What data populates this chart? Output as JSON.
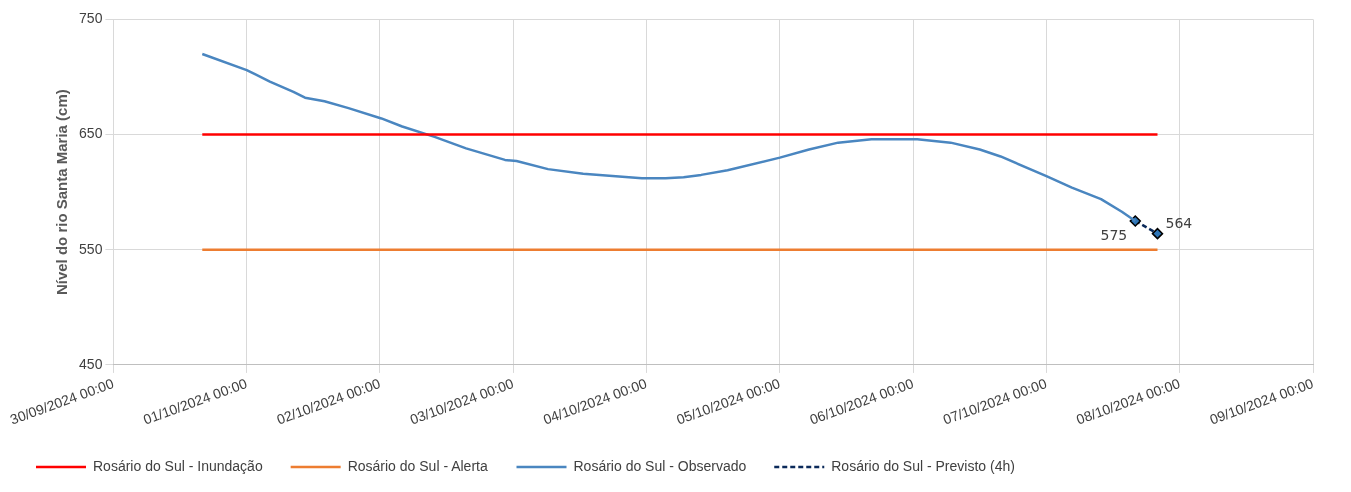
{
  "chart_data": {
    "type": "line",
    "ylabel": "Nível do rio Santa Maria (cm)",
    "xlim": [
      "2024-09-30T00:00",
      "2024-10-09T00:00"
    ],
    "xticks": [
      {
        "value": "2024-09-30T00:00",
        "label": "30/09/2024 00:00"
      },
      {
        "value": "2024-10-01T00:00",
        "label": "01/10/2024 00:00"
      },
      {
        "value": "2024-10-02T00:00",
        "label": "02/10/2024 00:00"
      },
      {
        "value": "2024-10-03T00:00",
        "label": "03/10/2024 00:00"
      },
      {
        "value": "2024-10-04T00:00",
        "label": "04/10/2024 00:00"
      },
      {
        "value": "2024-10-05T00:00",
        "label": "05/10/2024 00:00"
      },
      {
        "value": "2024-10-06T00:00",
        "label": "06/10/2024 00:00"
      },
      {
        "value": "2024-10-07T00:00",
        "label": "07/10/2024 00:00"
      },
      {
        "value": "2024-10-08T00:00",
        "label": "08/10/2024 00:00"
      },
      {
        "value": "2024-10-09T00:00",
        "label": "09/10/2024 00:00"
      }
    ],
    "ylim": [
      450,
      750
    ],
    "yticks": [
      450,
      550,
      650,
      750
    ],
    "grid": true,
    "legend": "bottom",
    "series": [
      {
        "name": "Rosário do Sul - Inundação",
        "color": "#ff0000",
        "x": [
          "2024-09-30T16:00",
          "2024-10-07T20:00"
        ],
        "values": [
          650,
          650
        ]
      },
      {
        "name": "Rosário do Sul - Alerta",
        "color": "#ed7d31",
        "x": [
          "2024-09-30T16:00",
          "2024-10-07T20:00"
        ],
        "values": [
          550,
          550
        ]
      },
      {
        "name": "Rosário do Sul - Observado",
        "color": "#4a86c0",
        "x": [
          "2024-09-30T16:00",
          "2024-10-01T00:00",
          "2024-10-01T04:10",
          "2024-10-01T08:25",
          "2024-10-01T10:30",
          "2024-10-01T14:00",
          "2024-10-01T18:20",
          "2024-10-02T00:15",
          "2024-10-02T04:00",
          "2024-10-02T09:50",
          "2024-10-02T15:30",
          "2024-10-02T22:30",
          "2024-10-03T00:35",
          "2024-10-03T06:15",
          "2024-10-03T12:35",
          "2024-10-03T23:10",
          "2024-10-04T03:25",
          "2024-10-04T06:40",
          "2024-10-04T09:50",
          "2024-10-04T14:35",
          "2024-10-05T00:00",
          "2024-10-05T05:15",
          "2024-10-05T10:30",
          "2024-10-05T16:30",
          "2024-10-05T21:00",
          "2024-10-06T00:45",
          "2024-10-06T06:45",
          "2024-10-06T12:00",
          "2024-10-06T15:45",
          "2024-10-07T00:00",
          "2024-10-07T04:35",
          "2024-10-07T09:50",
          "2024-10-07T13:35",
          "2024-10-07T16:00"
        ],
        "values": [
          720,
          706,
          696,
          687,
          682,
          679,
          673,
          664,
          657,
          648,
          638,
          628,
          627,
          620,
          616,
          612,
          612,
          613,
          615,
          619,
          630,
          637,
          643,
          646,
          646,
          646,
          643,
          637,
          631,
          614,
          604,
          594,
          583,
          575
        ]
      },
      {
        "name": "Rosário do Sul - Previsto (4h)",
        "color": "#0b2a5a",
        "line_style": "dashed",
        "marker": "diamond",
        "x": [
          "2024-10-07T16:00",
          "2024-10-07T20:00"
        ],
        "values": [
          575,
          564
        ],
        "value_labels": [
          "575",
          "564"
        ]
      }
    ]
  }
}
